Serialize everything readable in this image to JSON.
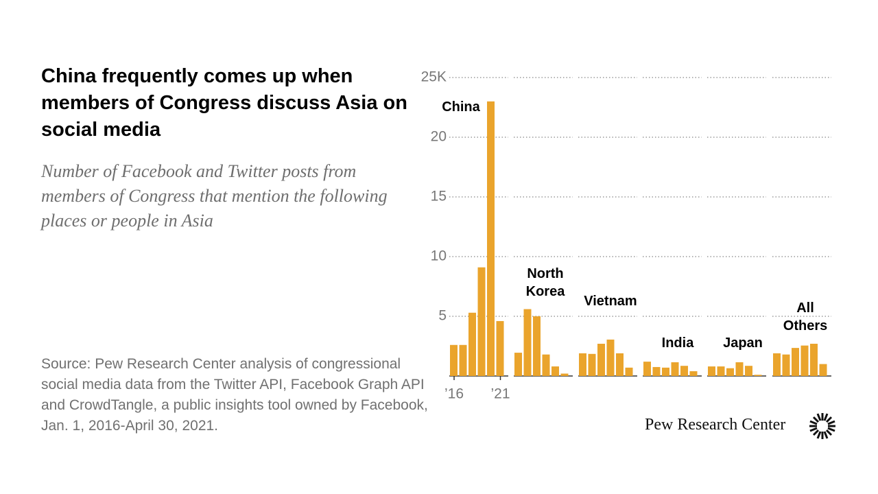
{
  "chart_data": {
    "type": "bar",
    "title": "China frequently comes up when members of Congress discuss Asia on social media",
    "subtitle": "Number of Facebook and Twitter posts from members of Congress that mention the following places or people in Asia",
    "source": "Source: Pew Research Center analysis of congressional social media data from the Twitter API, Facebook Graph API and CrowdTangle, a public insights tool owned by Facebook, Jan. 1, 2016-April 30, 2021.",
    "credit": "Pew Research Center",
    "categories": [
      "’16",
      null,
      null,
      null,
      null,
      "’21"
    ],
    "ylim": [
      0,
      25
    ],
    "yticks": [
      5,
      10,
      15,
      20,
      {
        "value": 25,
        "label": "25K"
      }
    ],
    "grid": true,
    "color": "#eaa42c",
    "series": [
      {
        "name": "China",
        "values": [
          2.6,
          2.6,
          5.3,
          9.1,
          23.0,
          4.6
        ]
      },
      {
        "name": "North Korea",
        "values": [
          1.95,
          5.6,
          5.0,
          1.8,
          0.8,
          0.2
        ]
      },
      {
        "name": "Vietnam",
        "values": [
          1.9,
          1.85,
          2.7,
          3.05,
          1.9,
          0.7
        ]
      },
      {
        "name": "India",
        "values": [
          1.2,
          0.75,
          0.7,
          1.15,
          0.85,
          0.4
        ]
      },
      {
        "name": "Japan",
        "values": [
          0.8,
          0.8,
          0.65,
          1.15,
          0.85,
          0.1
        ]
      },
      {
        "name": "All Others",
        "values": [
          1.9,
          1.8,
          2.35,
          2.55,
          2.7,
          1.0
        ]
      }
    ]
  }
}
